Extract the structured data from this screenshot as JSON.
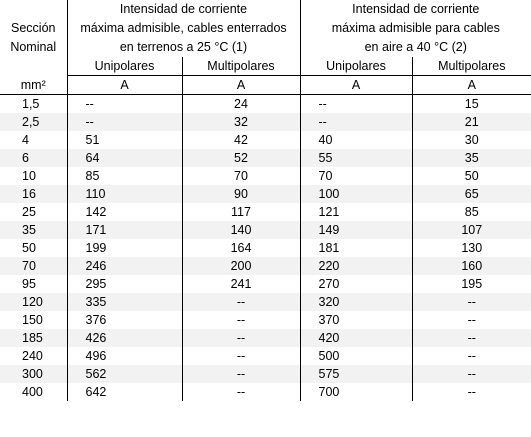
{
  "header": {
    "section": [
      "Sección",
      "Nominal"
    ],
    "buried": [
      "Intensidad de corriente",
      "máxima admisible, cables enterrados",
      "en terrenos a 25 °C (1)"
    ],
    "air": [
      "Intensidad de corriente",
      "máxima admisible para cables",
      "en aire a 40 °C (2)"
    ],
    "sub_uni": "Unipolares",
    "sub_multi": "Multipolares",
    "unit_section": "mm²",
    "unit_amp": "A"
  },
  "rows": [
    [
      "1,5",
      "--",
      "24",
      "--",
      "15"
    ],
    [
      "2,5",
      "--",
      "32",
      "--",
      "21"
    ],
    [
      "4",
      "51",
      "42",
      "40",
      "30"
    ],
    [
      "6",
      "64",
      "52",
      "55",
      "35"
    ],
    [
      "10",
      "85",
      "70",
      "70",
      "50"
    ],
    [
      "16",
      "110",
      "90",
      "100",
      "65"
    ],
    [
      "25",
      "142",
      "117",
      "121",
      "85"
    ],
    [
      "35",
      "171",
      "140",
      "149",
      "107"
    ],
    [
      "50",
      "199",
      "164",
      "181",
      "130"
    ],
    [
      "70",
      "246",
      "200",
      "220",
      "160"
    ],
    [
      "95",
      "295",
      "241",
      "270",
      "195"
    ],
    [
      "120",
      "335",
      "--",
      "320",
      "--"
    ],
    [
      "150",
      "376",
      "--",
      "370",
      "--"
    ],
    [
      "185",
      "426",
      "--",
      "420",
      "--"
    ],
    [
      "240",
      "496",
      "--",
      "500",
      "--"
    ],
    [
      "300",
      "562",
      "--",
      "575",
      "--"
    ],
    [
      "400",
      "642",
      "--",
      "700",
      "--"
    ]
  ]
}
